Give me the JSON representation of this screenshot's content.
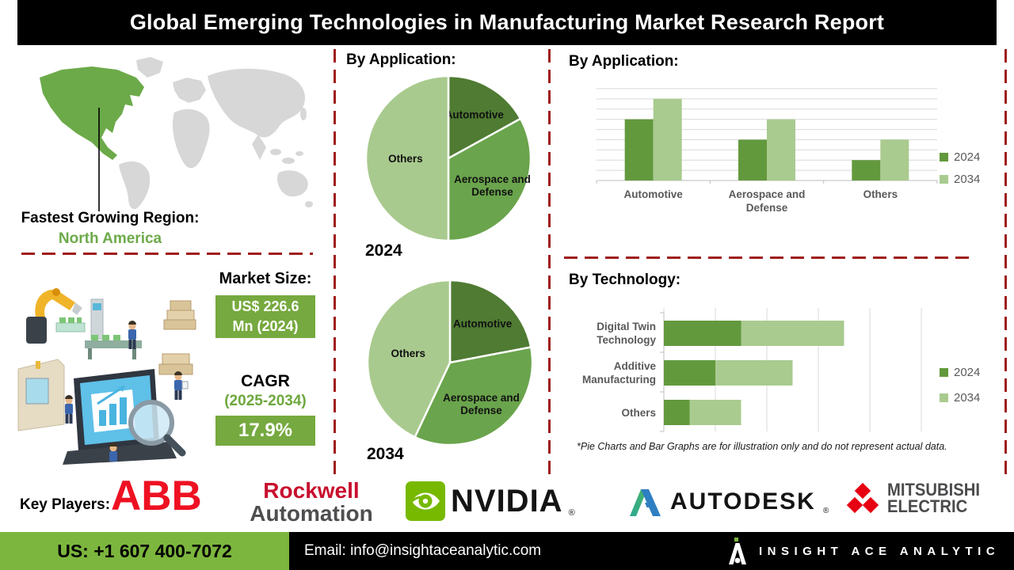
{
  "header": {
    "title": "Global Emerging Technologies in Manufacturing Market Research Report"
  },
  "map": {
    "caption_label": "Fastest Growing Region:",
    "caption_value": "North America"
  },
  "market": {
    "size_label": "Market Size:",
    "size_line1": "US$ 226.6",
    "size_line2": "Mn (2024)",
    "cagr_label": "CAGR",
    "cagr_period": "(2025-2034)",
    "cagr_value": "17.9%"
  },
  "footnote": "*Pie Charts and Bar Graphs are for illustration only and do not represent actual data.",
  "chart_data": [
    {
      "type": "pie",
      "title": "By Application:",
      "year": "2024",
      "labels": [
        "Automotive",
        "Aerospace and Defense",
        "Others"
      ],
      "values": [
        17,
        33,
        50
      ],
      "note": "illustrative only, percentages estimated from slice angles"
    },
    {
      "type": "pie",
      "title": "By Application:",
      "year": "2034",
      "labels": [
        "Automotive",
        "Aerospace and Defense",
        "Others"
      ],
      "values": [
        22,
        35,
        43
      ],
      "note": "illustrative only, percentages estimated from slice angles"
    },
    {
      "type": "bar",
      "title": "By Application:",
      "categories": [
        "Automotive",
        "Aerospace and Defense",
        "Others"
      ],
      "series": [
        {
          "name": "2024",
          "values": [
            6,
            4,
            2
          ]
        },
        {
          "name": "2034",
          "values": [
            8,
            6,
            4
          ]
        }
      ],
      "ylim": [
        0,
        9
      ],
      "grid": true,
      "legend_position": "right",
      "note": "no y-axis tick labels shown; values in gridline units"
    },
    {
      "type": "bar",
      "orientation": "horizontal-stacked",
      "title": "By Technology:",
      "categories": [
        "Digital Twin Technology",
        "Additive Manufacturing",
        "Others"
      ],
      "series": [
        {
          "name": "2024",
          "values": [
            1.5,
            1.0,
            0.5
          ]
        },
        {
          "name": "2034",
          "values": [
            2.0,
            1.5,
            1.0
          ]
        }
      ],
      "xlim": [
        0,
        5
      ],
      "grid": true,
      "legend_position": "right",
      "note": "no x-axis tick labels shown; values in gridline units"
    }
  ],
  "key_players": {
    "label": "Key Players:",
    "abb": "ABB",
    "rockwell_line1": "Rockwell",
    "rockwell_line2": "Automation",
    "nvidia": "NVIDIA",
    "nvidia_mark": "®",
    "autodesk": "AUTODESK",
    "autodesk_mark": "®",
    "mitsubishi_line1": "MITSUBISHI",
    "mitsubishi_line2": "ELECTRIC"
  },
  "footer": {
    "phone": "US: +1 607 400-7072",
    "email": "Email: info@insightaceanalytic.com",
    "brand": "INSIGHT ACE ANALYTIC"
  },
  "colors": {
    "pie_dark": "#4f7b32",
    "pie_mid": "#6aa44c",
    "pie_light": "#a9ca8e",
    "bar_dark": "#63993d",
    "bar_light": "#a9cb8f",
    "accent_green": "#76a93f",
    "na_green": "#6caa49",
    "footer_green": "#7cb63e",
    "dash_red": "#9f1d1d",
    "nvidia_green": "#76b900",
    "logo_red": "#e60012"
  }
}
